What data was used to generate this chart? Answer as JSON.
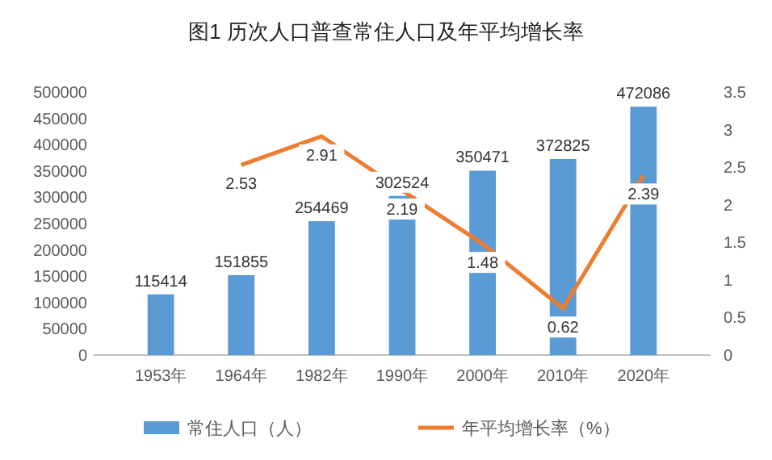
{
  "chart_data": {
    "type": "bar",
    "title": "图1    历次人口普查常住人口及年平均增长率",
    "categories": [
      "1953年",
      "1964年",
      "1982年",
      "1990年",
      "2000年",
      "2010年",
      "2020年"
    ],
    "series": [
      {
        "name": "常住人口（人）",
        "color": "#5b9bd5",
        "values": [
          115414,
          151855,
          254469,
          302524,
          350471,
          372825,
          472086
        ]
      },
      {
        "name": "年平均增长率（%）",
        "type": "line",
        "axis": "y2",
        "color": "#ed7d31",
        "values": [
          null,
          2.53,
          2.91,
          2.19,
          1.48,
          0.62,
          2.39
        ]
      }
    ],
    "ylim": [
      0,
      500000
    ],
    "yticks": [
      0,
      50000,
      100000,
      150000,
      200000,
      250000,
      300000,
      350000,
      400000,
      450000,
      500000
    ],
    "y2lim": [
      0,
      3.5
    ],
    "y2ticks": [
      0,
      0.5,
      1,
      1.5,
      2,
      2.5,
      3,
      3.5
    ],
    "data_labels": true,
    "legend": "bottom",
    "grid": false,
    "marker": "none",
    "line_style": "solid"
  }
}
